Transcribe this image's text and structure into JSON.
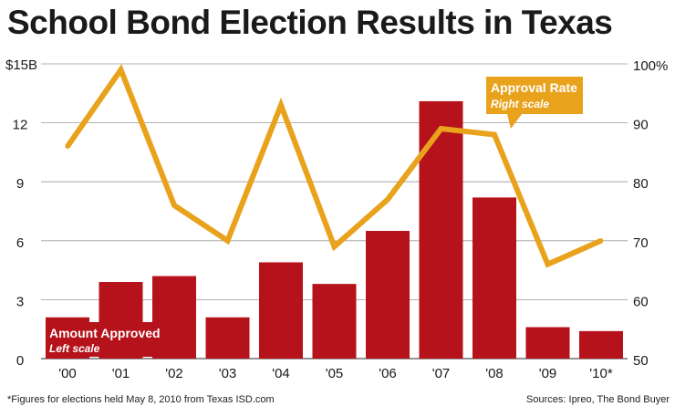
{
  "chart_data": {
    "type": "bar+line",
    "title": "School Bond Election Results in Texas",
    "categories": [
      "'00",
      "'01",
      "'02",
      "'03",
      "'04",
      "'05",
      "'06",
      "'07",
      "'08",
      "'09",
      "'10*"
    ],
    "series": [
      {
        "name": "Amount Approved",
        "subtitle": "Left scale",
        "type": "bar",
        "axis": "left",
        "color": "#b5121b",
        "values": [
          2.1,
          3.9,
          4.2,
          2.1,
          4.9,
          3.8,
          6.5,
          13.1,
          8.2,
          1.6,
          1.4
        ]
      },
      {
        "name": "Approval Rate",
        "subtitle": "Right scale",
        "type": "line",
        "axis": "right",
        "color": "#e8a21c",
        "values": [
          86,
          99,
          76,
          70,
          93,
          69,
          77,
          89,
          88,
          66,
          70
        ]
      }
    ],
    "left_axis": {
      "ylim": [
        0,
        15
      ],
      "ticks": [
        0,
        3,
        6,
        9,
        12,
        15
      ],
      "tick_labels": [
        "0",
        "3",
        "6",
        "9",
        "12",
        "$15B"
      ]
    },
    "right_axis": {
      "ylim": [
        50,
        100
      ],
      "ticks": [
        50,
        60,
        70,
        80,
        90,
        100
      ],
      "tick_labels": [
        "50",
        "60",
        "70",
        "80",
        "90",
        "100%"
      ]
    },
    "grid": true,
    "legend": {
      "bar_label": "Amount Approved",
      "bar_sublabel": "Left scale",
      "line_label": "Approval Rate",
      "line_sublabel": "Right scale"
    },
    "footnote": "*Figures for elections held May 8, 2010 from Texas ISD.com",
    "source": "Sources: Ipreo, The Bond Buyer"
  }
}
